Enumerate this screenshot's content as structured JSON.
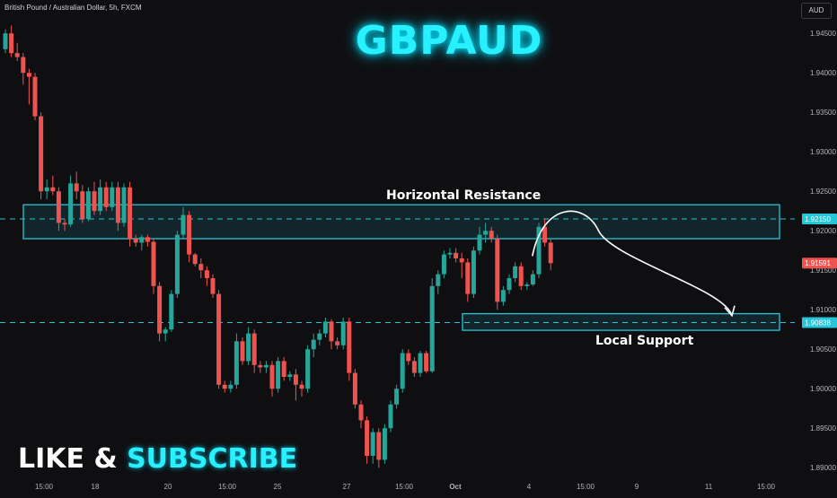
{
  "header": {
    "instrument": "British Pound / Australian Dollar, 5h, FXCM",
    "currency": "AUD"
  },
  "title": "GBPAUD",
  "annotations": {
    "resistance": "Horizontal Resistance",
    "support": "Local Support"
  },
  "cta": {
    "like": "LIKE &",
    "subscribe": "SUBSCRIBE"
  },
  "colors": {
    "up": "#26a69a",
    "down": "#ef5350",
    "zone": "#26c6da",
    "accent": "#29f0ff",
    "background": "#0f0f12"
  },
  "chart_data": {
    "type": "candlestick",
    "x_tick_labels": [
      "15:00",
      "18",
      "20",
      "15:00",
      "25",
      "27",
      "15:00",
      "Oct",
      "4",
      "15:00",
      "9",
      "11",
      "15:00"
    ],
    "y_tick_labels": [
      "1.94500",
      "1.94000",
      "1.93500",
      "1.93000",
      "1.92500",
      "1.92000",
      "1.91500",
      "1.91000",
      "1.90500",
      "1.90000",
      "1.89500",
      "1.89000"
    ],
    "ylim": [
      1.889,
      1.9465
    ],
    "price_labels": [
      {
        "text": "1.92150",
        "value": 1.9215,
        "color": "#26c6da"
      },
      {
        "text": "1.91591",
        "value": 1.91591,
        "color": "#ef5350"
      },
      {
        "text": "1.90838",
        "value": 1.90838,
        "color": "#26c6da"
      }
    ],
    "zones": [
      {
        "name": "Horizontal Resistance",
        "from": 1.919,
        "to": 1.9233,
        "x_start": 0,
        "x_end": 108,
        "dashed_level": 1.9215
      },
      {
        "name": "Local Support",
        "from": 1.9074,
        "to": 1.9095,
        "x_start": 64,
        "x_end": 108,
        "dashed_level": 1.90838
      }
    ],
    "projection": {
      "start_index": 88,
      "start": 1.9168,
      "peak_index": 92,
      "peak": 1.9212,
      "end_index": 102,
      "end": 1.9088
    },
    "candles": [
      [
        1.943,
        1.9455,
        1.9425,
        1.945
      ],
      [
        1.945,
        1.946,
        1.942,
        1.9425
      ],
      [
        1.9425,
        1.9438,
        1.9415,
        1.942
      ],
      [
        1.942,
        1.9425,
        1.9385,
        1.94
      ],
      [
        1.94,
        1.9405,
        1.936,
        1.9395
      ],
      [
        1.9395,
        1.94,
        1.934,
        1.9345
      ],
      [
        1.9345,
        1.935,
        1.924,
        1.925
      ],
      [
        1.925,
        1.9265,
        1.924,
        1.9255
      ],
      [
        1.9255,
        1.927,
        1.9245,
        1.925
      ],
      [
        1.925,
        1.9255,
        1.92,
        1.921
      ],
      [
        1.921,
        1.9215,
        1.92,
        1.9208
      ],
      [
        1.9208,
        1.927,
        1.9205,
        1.926
      ],
      [
        1.926,
        1.9275,
        1.924,
        1.925
      ],
      [
        1.925,
        1.9258,
        1.921,
        1.9215
      ],
      [
        1.9215,
        1.9255,
        1.9212,
        1.925
      ],
      [
        1.925,
        1.9262,
        1.922,
        1.9225
      ],
      [
        1.9225,
        1.9265,
        1.922,
        1.9255
      ],
      [
        1.9255,
        1.9262,
        1.9225,
        1.923
      ],
      [
        1.923,
        1.9262,
        1.9225,
        1.9255
      ],
      [
        1.9255,
        1.9262,
        1.92,
        1.921
      ],
      [
        1.921,
        1.926,
        1.9205,
        1.9255
      ],
      [
        1.9255,
        1.9262,
        1.918,
        1.919
      ],
      [
        1.919,
        1.9195,
        1.918,
        1.9185
      ],
      [
        1.9185,
        1.9195,
        1.9175,
        1.9192
      ],
      [
        1.9192,
        1.9195,
        1.918,
        1.9186
      ],
      [
        1.9186,
        1.919,
        1.912,
        1.913
      ],
      [
        1.913,
        1.9135,
        1.906,
        1.907
      ],
      [
        1.907,
        1.9078,
        1.906,
        1.9075
      ],
      [
        1.9075,
        1.9125,
        1.9072,
        1.912
      ],
      [
        1.912,
        1.92,
        1.9115,
        1.9195
      ],
      [
        1.9195,
        1.923,
        1.919,
        1.922
      ],
      [
        1.922,
        1.9225,
        1.916,
        1.917
      ],
      [
        1.917,
        1.9172,
        1.9155,
        1.9158
      ],
      [
        1.9158,
        1.9165,
        1.914,
        1.915
      ],
      [
        1.915,
        1.9155,
        1.913,
        1.914
      ],
      [
        1.914,
        1.9145,
        1.9115,
        1.912
      ],
      [
        1.912,
        1.9125,
        1.9,
        1.9005
      ],
      [
        1.9005,
        1.901,
        1.8995,
        1.9
      ],
      [
        1.9,
        1.901,
        1.8995,
        1.9005
      ],
      [
        1.9005,
        1.907,
        1.9,
        1.906
      ],
      [
        1.906,
        1.9065,
        1.903,
        1.9035
      ],
      [
        1.9035,
        1.9078,
        1.903,
        1.907
      ],
      [
        1.907,
        1.9075,
        1.902,
        1.903
      ],
      [
        1.903,
        1.9035,
        1.902,
        1.9027
      ],
      [
        1.9027,
        1.9035,
        1.902,
        1.903
      ],
      [
        1.903,
        1.9035,
        1.899,
        1.9
      ],
      [
        1.9,
        1.904,
        1.8995,
        1.9035
      ],
      [
        1.9035,
        1.904,
        1.901,
        1.9015
      ],
      [
        1.9015,
        1.9022,
        1.901,
        1.9018
      ],
      [
        1.9018,
        1.9025,
        1.8985,
        1.9005
      ],
      [
        1.9005,
        1.901,
        1.899,
        1.9
      ],
      [
        1.9,
        1.9055,
        1.8995,
        1.905
      ],
      [
        1.905,
        1.907,
        1.904,
        1.9062
      ],
      [
        1.9062,
        1.9075,
        1.9055,
        1.907
      ],
      [
        1.907,
        1.909,
        1.9065,
        1.9085
      ],
      [
        1.9085,
        1.9088,
        1.905,
        1.906
      ],
      [
        1.906,
        1.9065,
        1.905,
        1.9055
      ],
      [
        1.9055,
        1.909,
        1.905,
        1.9085
      ],
      [
        1.9085,
        1.909,
        1.901,
        1.902
      ],
      [
        1.902,
        1.9025,
        1.8975,
        1.898
      ],
      [
        1.898,
        1.8985,
        1.895,
        1.896
      ],
      [
        1.896,
        1.8965,
        1.8905,
        1.8915
      ],
      [
        1.8915,
        1.895,
        1.8905,
        1.8945
      ],
      [
        1.8945,
        1.895,
        1.89,
        1.891
      ],
      [
        1.891,
        1.8955,
        1.8905,
        1.895
      ],
      [
        1.895,
        1.8985,
        1.8945,
        1.898
      ],
      [
        1.898,
        1.9005,
        1.8975,
        1.9
      ],
      [
        1.9,
        1.905,
        1.8995,
        1.9045
      ],
      [
        1.9045,
        1.905,
        1.903,
        1.9035
      ],
      [
        1.9035,
        1.904,
        1.9015,
        1.902
      ],
      [
        1.902,
        1.9048,
        1.9015,
        1.9045
      ],
      [
        1.9045,
        1.9048,
        1.902,
        1.9022
      ],
      [
        1.9022,
        1.914,
        1.902,
        1.913
      ],
      [
        1.913,
        1.915,
        1.912,
        1.9145
      ],
      [
        1.9145,
        1.9175,
        1.914,
        1.917
      ],
      [
        1.917,
        1.9178,
        1.9165,
        1.9172
      ],
      [
        1.9172,
        1.9178,
        1.916,
        1.9165
      ],
      [
        1.9165,
        1.9172,
        1.914,
        1.916
      ],
      [
        1.916,
        1.9165,
        1.911,
        1.912
      ],
      [
        1.912,
        1.918,
        1.9115,
        1.9175
      ],
      [
        1.9175,
        1.9205,
        1.917,
        1.9195
      ],
      [
        1.9195,
        1.921,
        1.9185,
        1.92
      ],
      [
        1.92,
        1.9205,
        1.9185,
        1.919
      ],
      [
        1.919,
        1.9195,
        1.91,
        1.911
      ],
      [
        1.911,
        1.913,
        1.9105,
        1.9125
      ],
      [
        1.9125,
        1.9145,
        1.912,
        1.914
      ],
      [
        1.914,
        1.916,
        1.9135,
        1.9155
      ],
      [
        1.9155,
        1.916,
        1.9125,
        1.913
      ],
      [
        1.913,
        1.9135,
        1.9125,
        1.9132
      ],
      [
        1.9132,
        1.915,
        1.913,
        1.9145
      ],
      [
        1.9145,
        1.921,
        1.914,
        1.9205
      ],
      [
        1.9205,
        1.9215,
        1.918,
        1.9185
      ],
      [
        1.9185,
        1.919,
        1.915,
        1.9159
      ]
    ]
  }
}
